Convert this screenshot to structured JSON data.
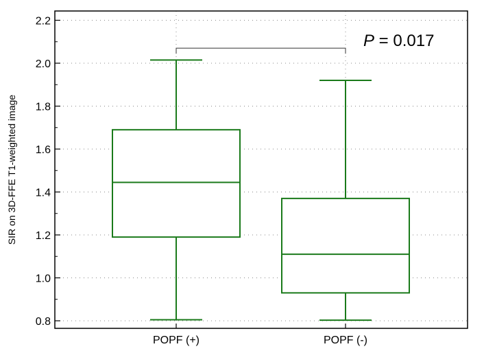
{
  "chart_data": {
    "type": "box",
    "title": "",
    "xlabel": "",
    "ylabel": "SIR on 3D-FFE T1-weighted image",
    "ylim": [
      0.78,
      2.26
    ],
    "yticks": [
      "0.8",
      "1.0",
      "1.2",
      "1.4",
      "1.6",
      "1.8",
      "2.0",
      "2.2"
    ],
    "grid": true,
    "box_color": "#1a7a1a",
    "categories": [
      "POPF (+)",
      "POPF (-)"
    ],
    "boxes": [
      {
        "category": "POPF (+)",
        "min": 0.805,
        "q1": 1.19,
        "median": 1.445,
        "q3": 1.69,
        "max": 2.015
      },
      {
        "category": "POPF (-)",
        "min": 0.803,
        "q1": 0.93,
        "median": 1.11,
        "q3": 1.37,
        "max": 1.92
      }
    ],
    "annotation": {
      "p_symbol": "P",
      "p_rest": " = 0.017",
      "bracket_level": 2.07
    }
  }
}
